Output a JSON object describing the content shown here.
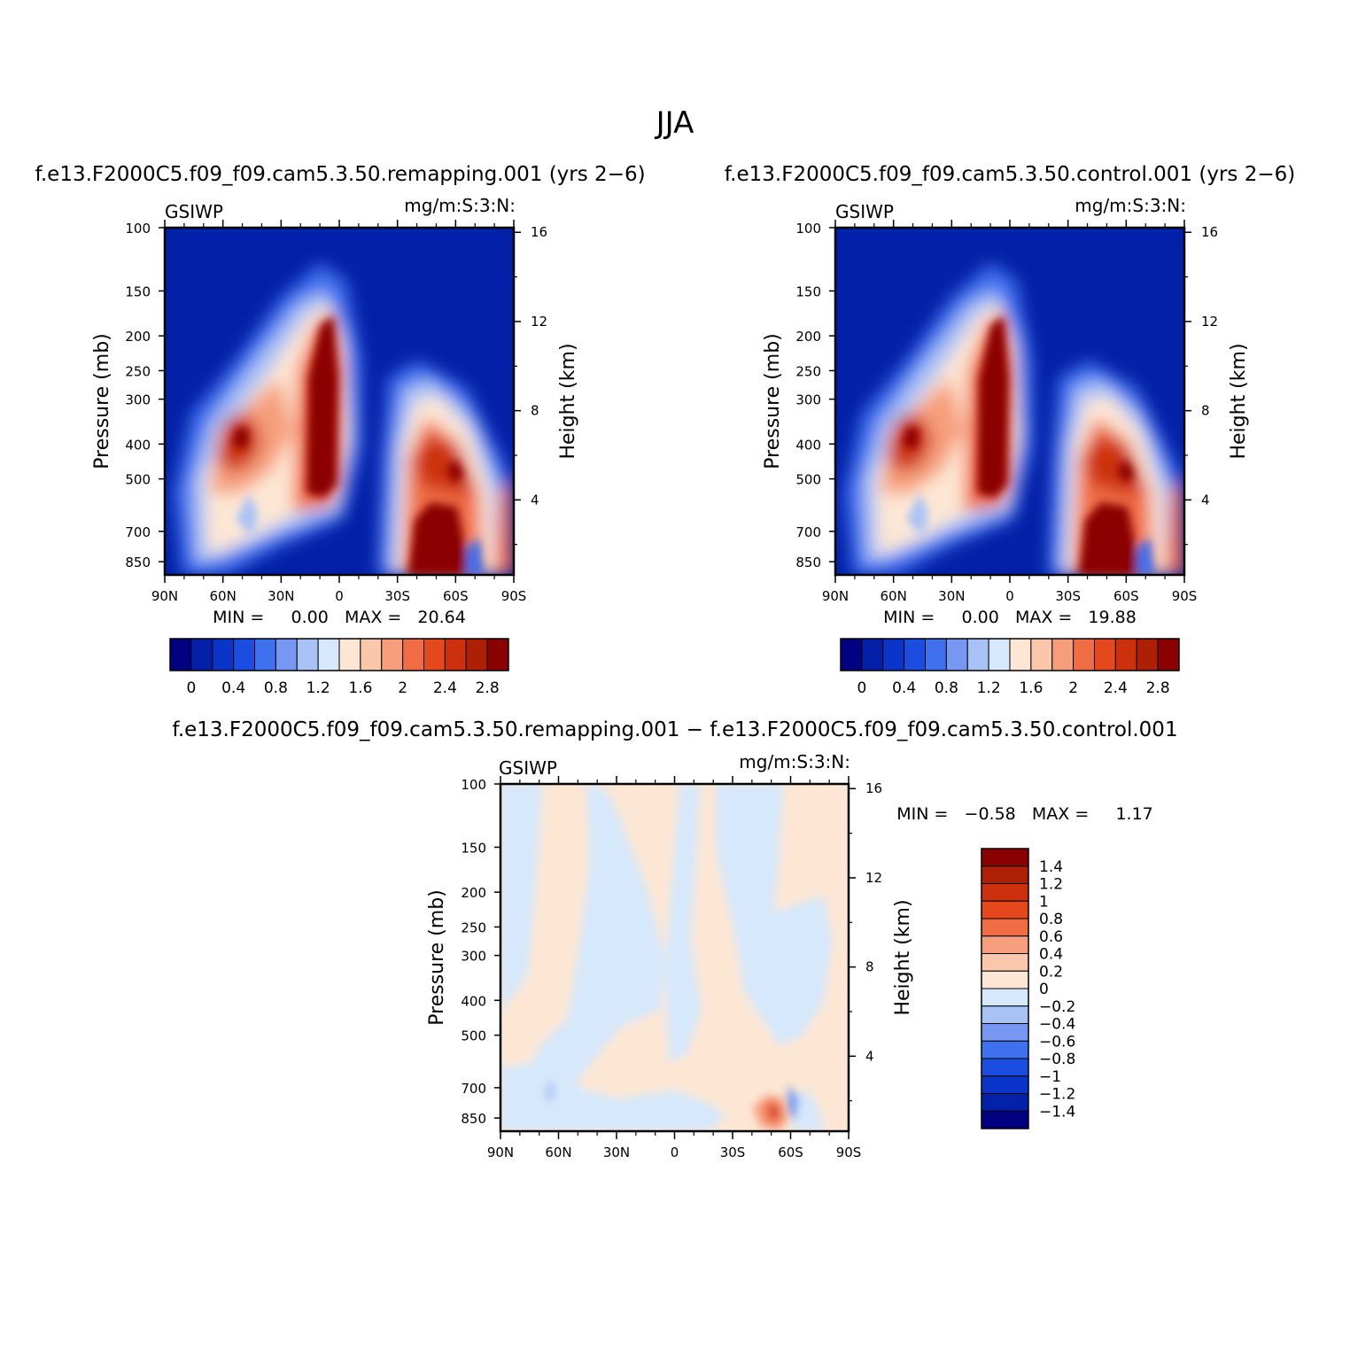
{
  "figure": {
    "title": "JJA"
  },
  "panels": {
    "remap": {
      "title": "f.e13.F2000C5.f09_f09.cam5.3.50.remapping.001  (yrs 2−6)",
      "var": "GSIWP",
      "units": "mg/m:S:3:N:",
      "minmax": "MIN =     0.00   MAX =   20.64"
    },
    "ctrl": {
      "title": "f.e13.F2000C5.f09_f09.cam5.3.50.control.001  (yrs 2−6)",
      "var": "GSIWP",
      "units": "mg/m:S:3:N:",
      "minmax": "MIN =     0.00   MAX =   19.88"
    },
    "diff": {
      "title": "f.e13.F2000C5.f09_f09.cam5.3.50.remapping.001  −  f.e13.F2000C5.f09_f09.cam5.3.50.control.001",
      "var": "GSIWP",
      "units": "mg/m:S:3:N:",
      "minmax": "MIN =   −0.58   MAX =     1.17"
    }
  },
  "axes": {
    "ylabel_left": "Pressure  (mb)",
    "ylabel_right": "Height  (km)",
    "pressure_ticks": [
      "100",
      "150",
      "200",
      "250",
      "300",
      "400",
      "500",
      "700",
      "850"
    ],
    "pressure_values": [
      100,
      150,
      200,
      250,
      300,
      400,
      500,
      700,
      850
    ],
    "height_ticks": [
      "16",
      "12",
      "8",
      "4"
    ],
    "height_values": [
      16,
      12,
      8,
      4
    ],
    "lat_ticks": [
      "90N",
      "60N",
      "30N",
      "0",
      "30S",
      "60S",
      "90S"
    ],
    "lat_values": [
      90,
      60,
      30,
      0,
      -30,
      -60,
      -90
    ]
  },
  "colorbars": {
    "main": {
      "labels": [
        "0",
        "0.4",
        "0.8",
        "1.2",
        "1.6",
        "2",
        "2.4",
        "2.8"
      ],
      "colors": [
        "#000080",
        "#0321a8",
        "#0a35c8",
        "#1a4de0",
        "#3f70ee",
        "#7698f2",
        "#a9c2f6",
        "#d6e8fb",
        "#fde7d4",
        "#fbc7ab",
        "#f69e7c",
        "#f06c45",
        "#e4481c",
        "#cc300c",
        "#ad2006",
        "#8b0000"
      ]
    },
    "diff": {
      "labels": [
        "1.4",
        "1.2",
        "1",
        "0.8",
        "0.6",
        "0.4",
        "0.2",
        "0",
        "−0.2",
        "−0.4",
        "−0.6",
        "−0.8",
        "−1",
        "−1.2",
        "−1.4"
      ],
      "colors": [
        "#8b0000",
        "#ad2006",
        "#cc300c",
        "#e4481c",
        "#f06c45",
        "#f69e7c",
        "#fbc7ab",
        "#fde7d4",
        "#d6e8fb",
        "#a9c2f6",
        "#7698f2",
        "#3f70ee",
        "#1a4de0",
        "#0a35c8",
        "#0321a8",
        "#000080"
      ]
    }
  },
  "chart_data": [
    {
      "type": "heatmap",
      "title": "f.e13.F2000C5.f09_f09.cam5.3.50.remapping.001  (yrs 2−6)",
      "variable": "GSIWP",
      "units": "mg/m:S:3:N:",
      "xlabel": "",
      "ylabel": "Pressure  (mb)",
      "y2label": "Height  (km)",
      "x_ticks": [
        "90N",
        "60N",
        "30N",
        "0",
        "30S",
        "60S",
        "90S"
      ],
      "y_ticks": [
        100,
        150,
        200,
        250,
        300,
        400,
        500,
        700,
        850
      ],
      "y2_ticks": [
        16,
        12,
        8,
        4
      ],
      "contour_levels": [
        0,
        0.4,
        0.8,
        1.2,
        1.6,
        2,
        2.4,
        2.8
      ],
      "min": 0.0,
      "max": 20.64,
      "features": [
        {
          "lat": 50,
          "p": 380,
          "value": 2.6
        },
        {
          "lat": 8,
          "p": 280,
          "value": 3.0
        },
        {
          "lat": -55,
          "p": 820,
          "value": 3.0
        },
        {
          "lat": -55,
          "p": 460,
          "value": 2.6
        }
      ]
    },
    {
      "type": "heatmap",
      "title": "f.e13.F2000C5.f09_f09.cam5.3.50.control.001  (yrs 2−6)",
      "variable": "GSIWP",
      "units": "mg/m:S:3:N:",
      "xlabel": "",
      "ylabel": "Pressure  (mb)",
      "y2label": "Height  (km)",
      "x_ticks": [
        "90N",
        "60N",
        "30N",
        "0",
        "30S",
        "60S",
        "90S"
      ],
      "y_ticks": [
        100,
        150,
        200,
        250,
        300,
        400,
        500,
        700,
        850
      ],
      "y2_ticks": [
        16,
        12,
        8,
        4
      ],
      "contour_levels": [
        0,
        0.4,
        0.8,
        1.2,
        1.6,
        2,
        2.4,
        2.8
      ],
      "min": 0.0,
      "max": 19.88,
      "features": [
        {
          "lat": 50,
          "p": 380,
          "value": 2.6
        },
        {
          "lat": 8,
          "p": 280,
          "value": 3.0
        },
        {
          "lat": -55,
          "p": 820,
          "value": 3.0
        },
        {
          "lat": -55,
          "p": 460,
          "value": 2.6
        }
      ]
    },
    {
      "type": "heatmap",
      "title": "f.e13.F2000C5.f09_f09.cam5.3.50.remapping.001  −  f.e13.F2000C5.f09_f09.cam5.3.50.control.001",
      "variable": "GSIWP",
      "units": "mg/m:S:3:N:",
      "xlabel": "",
      "ylabel": "Pressure  (mb)",
      "y2label": "Height  (km)",
      "x_ticks": [
        "90N",
        "60N",
        "30N",
        "0",
        "30S",
        "60S",
        "90S"
      ],
      "y_ticks": [
        100,
        150,
        200,
        250,
        300,
        400,
        500,
        700,
        850
      ],
      "y2_ticks": [
        16,
        12,
        8,
        4
      ],
      "contour_levels": [
        -1.4,
        -1.2,
        -1,
        -0.8,
        -0.6,
        -0.4,
        -0.2,
        0,
        0.2,
        0.4,
        0.6,
        0.8,
        1,
        1.2,
        1.4
      ],
      "min": -0.58,
      "max": 1.17,
      "features": [
        {
          "lat": -52,
          "p": 840,
          "value": 1.17
        },
        {
          "lat": -58,
          "p": 840,
          "value": -0.58
        }
      ]
    }
  ]
}
